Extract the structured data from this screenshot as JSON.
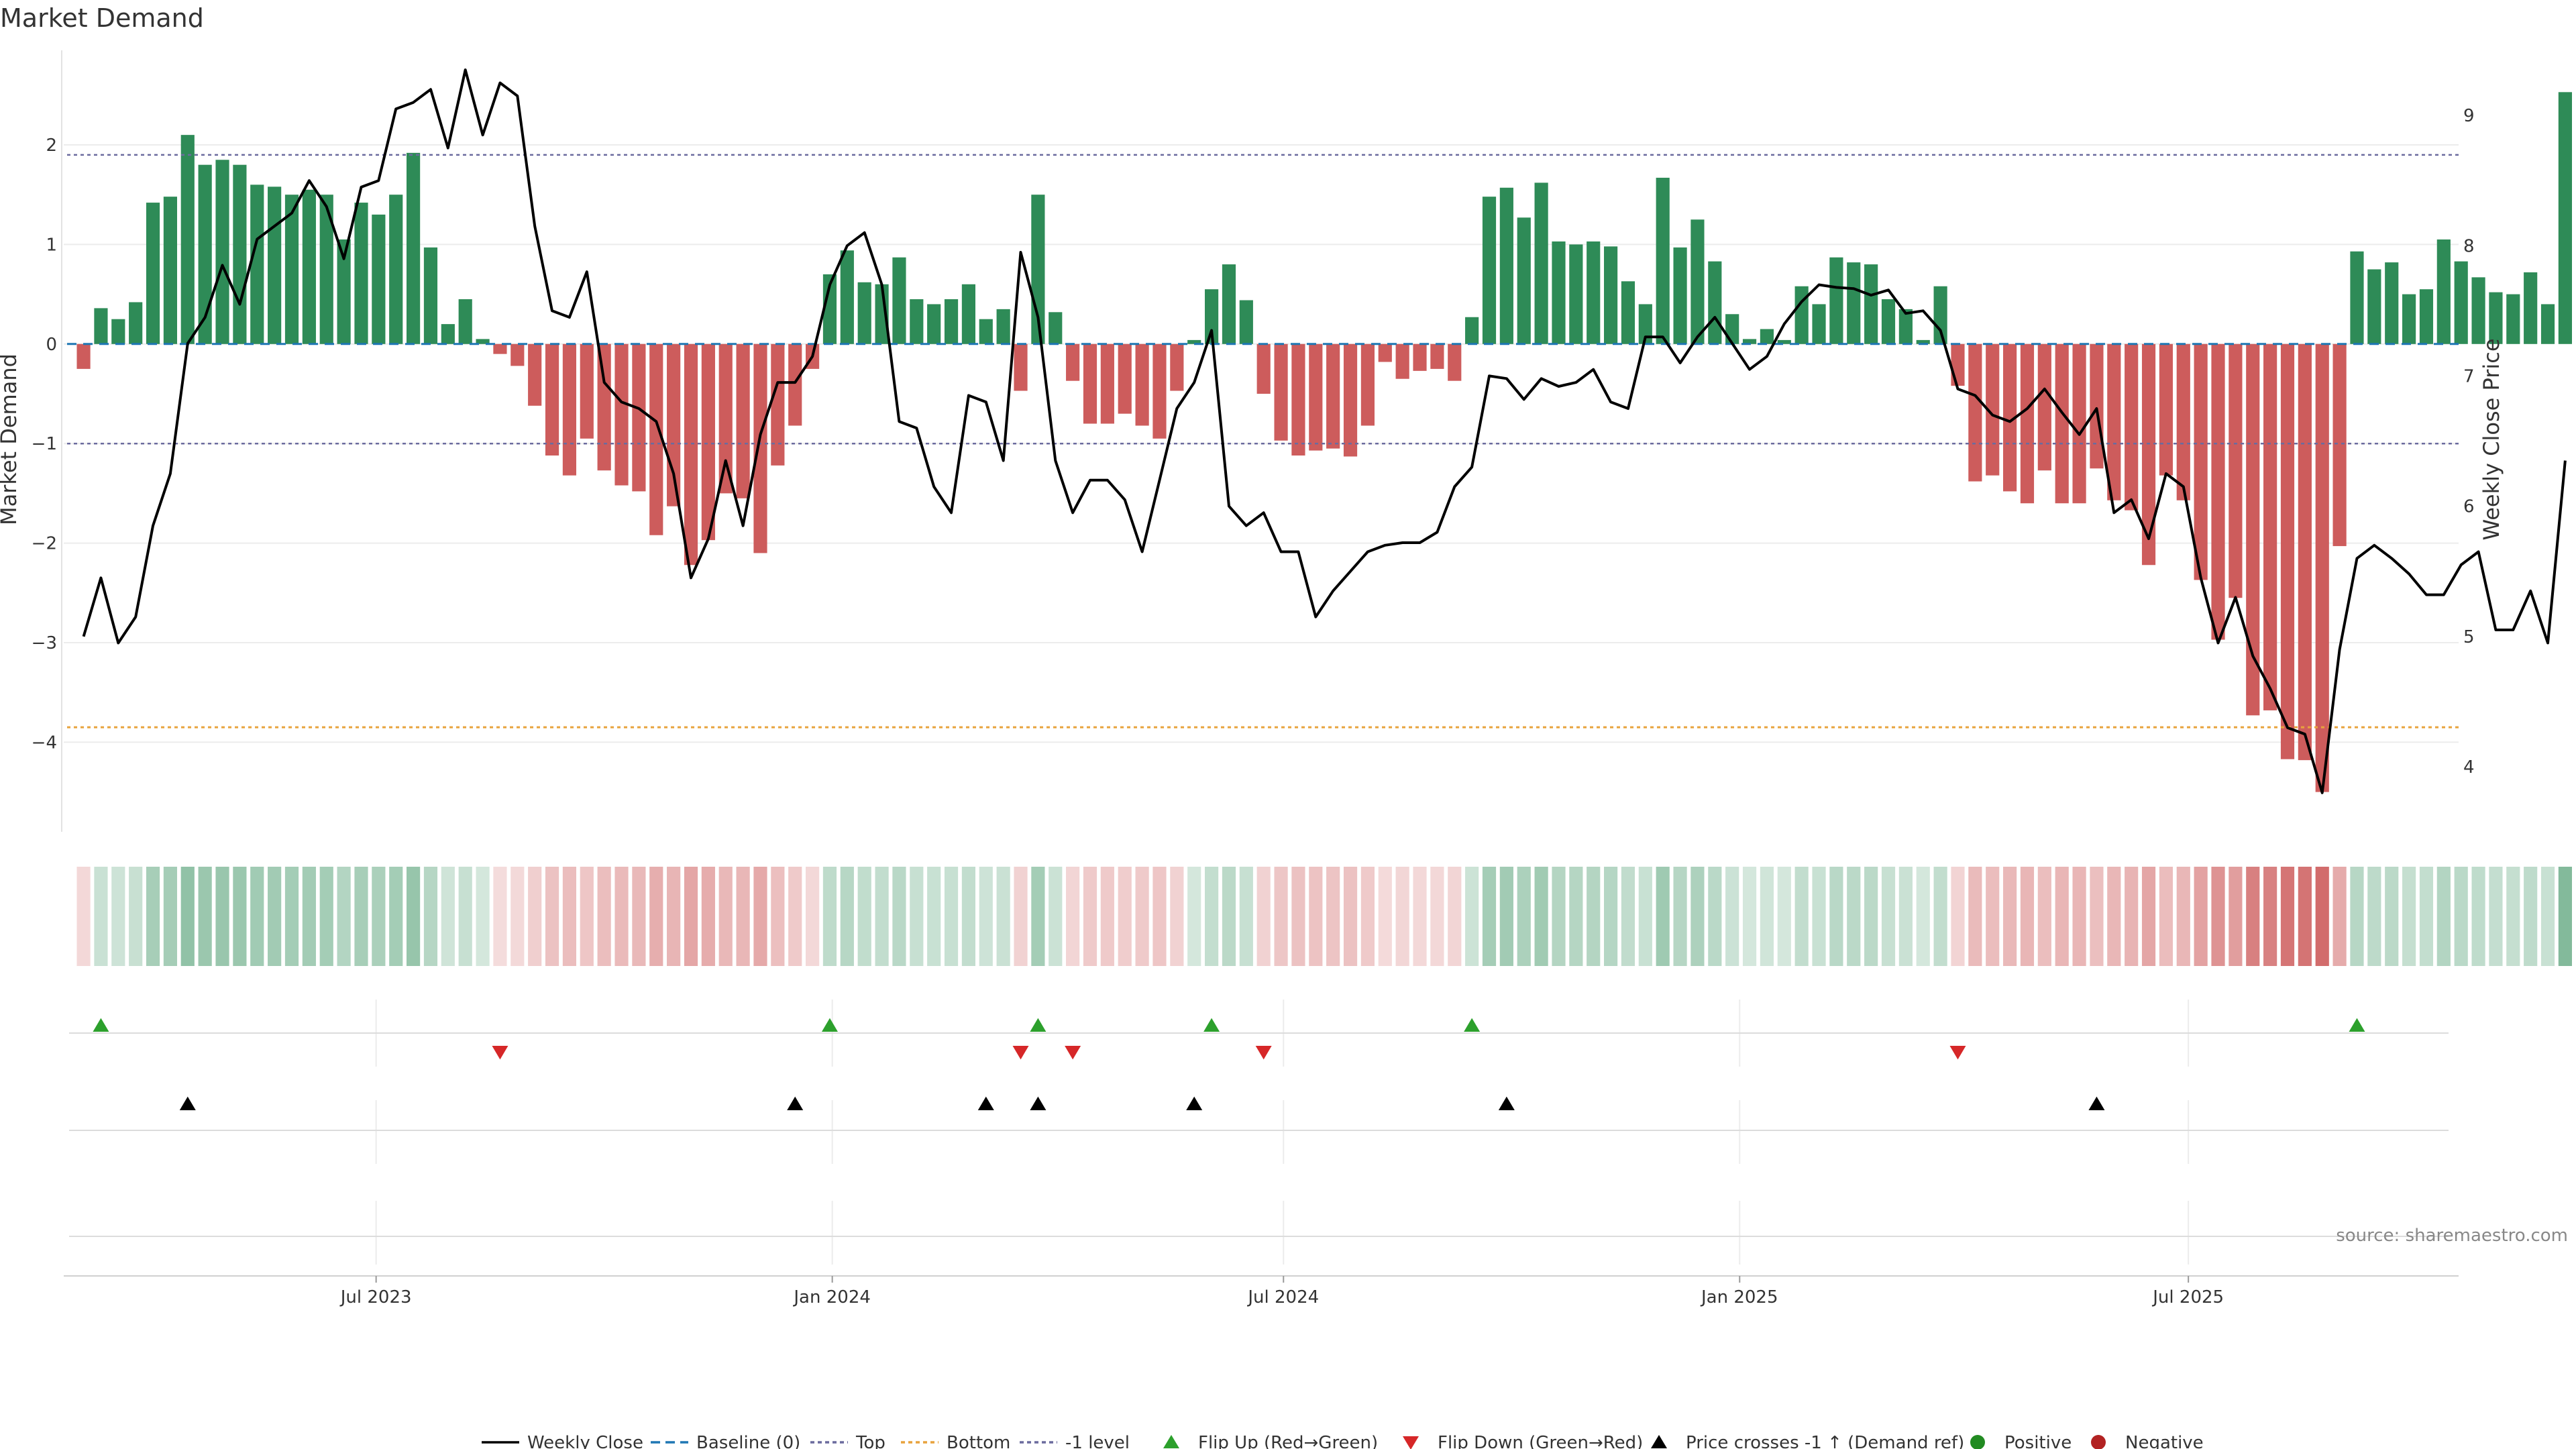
{
  "chart_data": {
    "type": "bar+line",
    "title": "Market Demand",
    "ylabel_left": "Market Demand",
    "ylabel_right": "Weekly Close Price",
    "ylim_left": [
      -4.9,
      2.95
    ],
    "ylim_right": [
      3.5,
      9.5
    ],
    "yticks_left": [
      2,
      1,
      0,
      -1,
      -2,
      -3,
      -4
    ],
    "yticks_right": [
      9,
      8,
      7,
      6,
      5,
      4
    ],
    "start_date": "2023-03-05",
    "week_days": 7,
    "x_range": [
      "2023-02-25",
      "2025-10-18"
    ],
    "xticks": [
      {
        "label": "Jul 2023",
        "date": "2023-07-01"
      },
      {
        "label": "Jan 2024",
        "date": "2024-01-01"
      },
      {
        "label": "Jul 2024",
        "date": "2024-07-01"
      },
      {
        "label": "Jan 2025",
        "date": "2025-01-01"
      },
      {
        "label": "Jul 2025",
        "date": "2025-07-01"
      }
    ],
    "reference_lines": {
      "top": 1.9,
      "bottom": -3.85,
      "minus_one": -1,
      "baseline": 0
    },
    "demand": [
      -0.25,
      0.36,
      0.25,
      0.42,
      1.42,
      1.48,
      2.1,
      1.8,
      1.85,
      1.8,
      1.6,
      1.58,
      1.5,
      1.55,
      1.5,
      1.05,
      1.42,
      1.3,
      1.5,
      1.92,
      0.97,
      0.2,
      0.45,
      0.05,
      -0.1,
      -0.22,
      -0.62,
      -1.12,
      -1.32,
      -0.95,
      -1.27,
      -1.42,
      -1.48,
      -1.92,
      -1.63,
      -2.22,
      -1.97,
      -1.5,
      -1.55,
      -2.1,
      -1.22,
      -0.82,
      -0.25,
      0.7,
      0.94,
      0.62,
      0.6,
      0.87,
      0.45,
      0.4,
      0.45,
      0.6,
      0.25,
      0.35,
      -0.47,
      1.5,
      0.32,
      -0.37,
      -0.8,
      -0.8,
      -0.7,
      -0.82,
      -0.95,
      -0.47,
      0.04,
      0.55,
      0.8,
      0.44,
      -0.5,
      -0.97,
      -1.12,
      -1.07,
      -1.05,
      -1.13,
      -0.82,
      -0.18,
      -0.35,
      -0.27,
      -0.25,
      -0.37,
      0.27,
      1.48,
      1.57,
      1.27,
      1.62,
      1.03,
      1.0,
      1.03,
      0.98,
      0.63,
      0.4,
      1.67,
      0.97,
      1.25,
      0.83,
      0.3,
      0.05,
      0.15,
      0.04,
      0.58,
      0.4,
      0.87,
      0.82,
      0.8,
      0.45,
      0.35,
      0.04,
      0.58,
      -0.42,
      -1.38,
      -1.32,
      -1.48,
      -1.6,
      -1.27,
      -1.6,
      -1.6,
      -1.25,
      -1.57,
      -1.67,
      -2.22,
      -1.32,
      -1.57,
      -2.37,
      -2.97,
      -2.55,
      -3.73,
      -3.68,
      -4.17,
      -4.18,
      -4.5,
      -2.03,
      0.93,
      0.75,
      0.82,
      0.5,
      0.55,
      1.05,
      0.83,
      0.67,
      0.52,
      0.5,
      0.72,
      0.4,
      2.53
    ],
    "close": [
      5.0,
      5.45,
      4.95,
      5.15,
      5.85,
      6.25,
      7.25,
      7.45,
      7.85,
      7.55,
      8.05,
      8.15,
      8.25,
      8.5,
      8.3,
      7.9,
      8.45,
      8.5,
      9.05,
      9.1,
      9.2,
      8.75,
      9.35,
      8.85,
      9.25,
      9.15,
      8.15,
      7.5,
      7.45,
      7.8,
      6.95,
      6.8,
      6.75,
      6.65,
      6.25,
      5.45,
      5.75,
      6.35,
      5.85,
      6.55,
      6.95,
      6.95,
      7.15,
      7.7,
      8.0,
      8.1,
      7.7,
      6.65,
      6.6,
      6.15,
      5.95,
      6.85,
      6.8,
      6.35,
      7.95,
      7.45,
      6.35,
      5.95,
      6.2,
      6.2,
      6.05,
      5.65,
      6.2,
      6.75,
      6.95,
      7.35,
      6.0,
      5.85,
      5.95,
      5.65,
      5.65,
      5.15,
      5.35,
      5.5,
      5.65,
      5.7,
      5.72,
      5.72,
      5.8,
      6.15,
      6.3,
      7.0,
      6.98,
      6.82,
      6.98,
      6.92,
      6.95,
      7.05,
      6.8,
      6.75,
      7.3,
      7.3,
      7.1,
      7.3,
      7.45,
      7.25,
      7.05,
      7.15,
      7.4,
      7.57,
      7.7,
      7.68,
      7.67,
      7.62,
      7.66,
      7.48,
      7.5,
      7.35,
      6.9,
      6.85,
      6.7,
      6.65,
      6.75,
      6.9,
      6.72,
      6.55,
      6.75,
      5.95,
      6.05,
      5.75,
      6.25,
      6.15,
      5.45,
      4.95,
      5.3,
      4.85,
      4.6,
      4.3,
      4.25,
      3.8,
      4.9,
      5.6,
      5.7,
      5.6,
      5.48,
      5.32,
      5.32,
      5.55,
      5.65,
      5.05,
      5.05,
      5.35,
      4.95,
      6.35
    ],
    "flip_up_weeks": [
      1,
      43,
      55,
      65,
      80,
      131
    ],
    "flip_down_weeks": [
      24,
      54,
      57,
      68,
      108
    ],
    "price_cross_weeks": [
      6,
      41,
      52,
      55,
      64,
      82,
      116
    ],
    "legend": [
      "Weekly Close",
      "Baseline (0)",
      "Top",
      "Bottom",
      "-1 level",
      "Flip Up (Red→Green)",
      "Flip Down (Green→Red)",
      "Price crosses -1 ↑ (Demand ref)",
      "Positive",
      "Negative"
    ],
    "source": "source: sharemaestro.com",
    "colors": {
      "positive": "#2e8b57",
      "negative": "#cd5c5c",
      "close": "#000000",
      "baseline": "#1f77b4",
      "top": "#6b6b9e",
      "bottom": "#e8a33d",
      "flip_up": "#2ca02c",
      "flip_down": "#d62728",
      "cross": "#000000",
      "positive_dot": "#228b22",
      "negative_dot": "#b22222"
    }
  }
}
